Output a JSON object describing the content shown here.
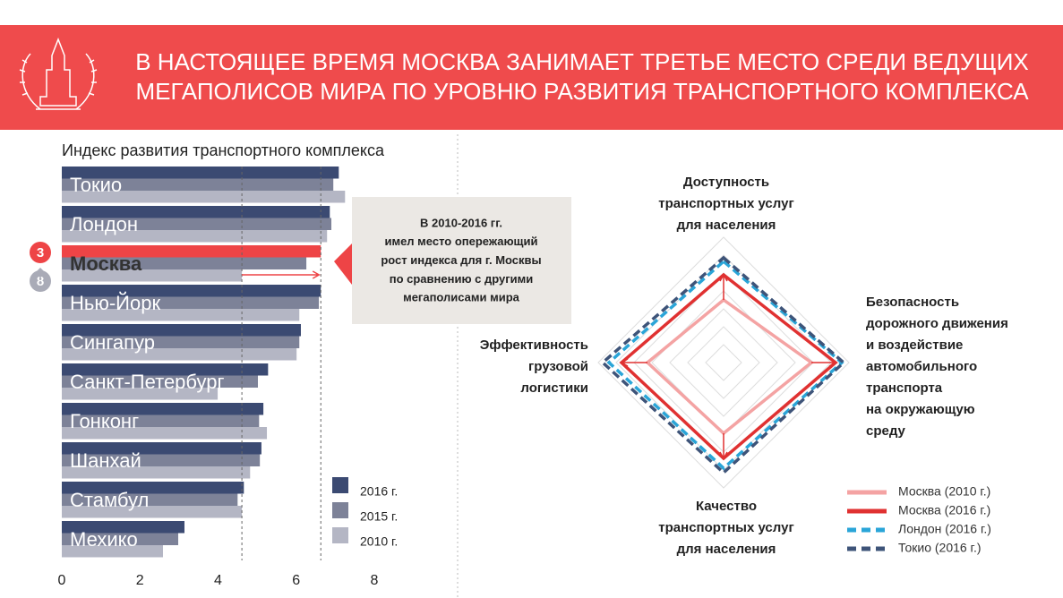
{
  "header": {
    "title": [
      "В НАСТОЯЩЕЕ ВРЕМЯ МОСКВА ЗАНИМАЕТ ТРЕТЬЕ МЕСТО СРЕДИ ВЕДУЩИХ",
      "МЕГАПОЛИСОВ МИРА ПО УРОВНЮ РАЗВИТИЯ ТРАНСПОРТНОГО КОМПЛЕКСА"
    ]
  },
  "chart_data": [
    {
      "type": "hbar",
      "title": "Индекс развития транспортного комплекса",
      "categories": [
        "Токио",
        "Лондон",
        "Москва",
        "Нью-Йорк",
        "Сингапур",
        "Санкт-Петербург",
        "Гонконг",
        "Шанхай",
        "Стамбул",
        "Мехико"
      ],
      "series": [
        {
          "name": "2016 г.",
          "color": "#3b4a72",
          "values": [
            7.09,
            6.86,
            6.63,
            6.63,
            6.12,
            5.28,
            5.16,
            5.11,
            4.66,
            3.14
          ]
        },
        {
          "name": "2015 г.",
          "color": "#7d8298",
          "values": [
            6.95,
            6.9,
            6.26,
            6.58,
            6.08,
            5.02,
            5.05,
            5.07,
            4.5,
            2.98
          ]
        },
        {
          "name": "2010 г.",
          "color": "#b4b6c4",
          "values": [
            7.25,
            6.79,
            4.61,
            6.08,
            6.01,
            3.99,
            5.25,
            4.82,
            4.61,
            2.59
          ]
        }
      ],
      "highlight_index": 2,
      "highlight_color": "#ee4446",
      "moscow_rank": [
        3,
        8
      ],
      "xlim": [
        0,
        8
      ],
      "xticks": [
        0,
        2,
        4,
        6,
        8
      ],
      "annotation": [
        "В 2010-2016 гг.",
        "имел место опережающий",
        "рост индекса для г. Москвы",
        "по сравнению с другими",
        "мегаполисами мира"
      ]
    },
    {
      "type": "radar",
      "axes": [
        [
          "Доступность",
          "транспортных услуг",
          "для населения"
        ],
        [
          "Безопасность",
          "дорожного движения",
          "и воздействие",
          "автомобильного",
          "транспорта",
          "на окружающую",
          "среду"
        ],
        [
          "Качество",
          "транспортных услуг",
          "для населения"
        ],
        [
          "Эффективность",
          "грузовой",
          "логистики"
        ]
      ],
      "series": [
        {
          "name": "Москва (2010 г.)",
          "color": "#f4a3a3",
          "dashed": false,
          "values": [
            3.5,
            4.9,
            3.95,
            4.25
          ]
        },
        {
          "name": "Москва (2016 г.)",
          "color": "#e03131",
          "dashed": false,
          "values": [
            4.9,
            6.25,
            5.35,
            5.7
          ]
        },
        {
          "name": "Лондон (2016 г.)",
          "color": "#2aa5d8",
          "dashed": true,
          "values": [
            5.65,
            6.6,
            5.9,
            6.4
          ]
        },
        {
          "name": "Токио (2016 г.)",
          "color": "#3e5479",
          "dashed": true,
          "values": [
            5.85,
            6.7,
            6.15,
            6.75
          ]
        }
      ],
      "rlim": [
        0,
        7
      ],
      "rticks": [
        1,
        2,
        3,
        4,
        5,
        6,
        7
      ]
    }
  ]
}
